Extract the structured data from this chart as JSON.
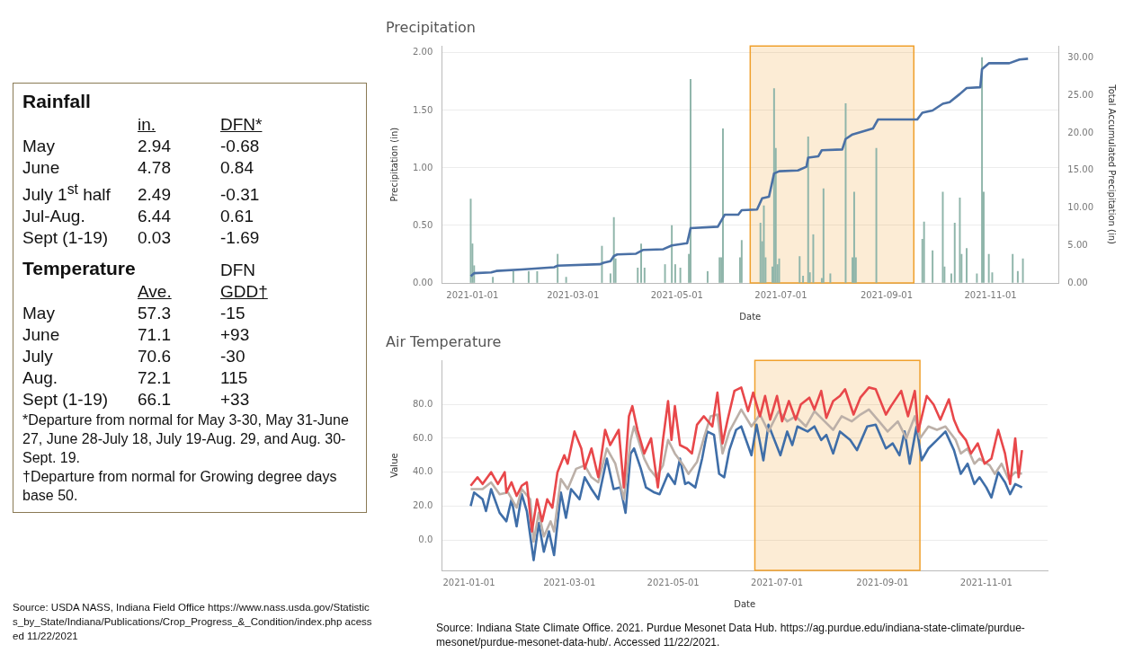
{
  "chart_data": [
    {
      "type": "other",
      "data_labels": true,
      "title": "Rainfall",
      "categories": [
        "May",
        "June",
        "July 1$^{st}$ half",
        "Jul-Aug.",
        "Sept (1-19)"
      ],
      "series": [
        {
          "name": "in.",
          "values": [
            2.94,
            4.78,
            2.49,
            6.44,
            0.03
          ]
        },
        {
          "name": "DFN*",
          "values": [
            -0.68,
            0.84,
            -0.31,
            0.61,
            -1.69
          ]
        }
      ]
    },
    {
      "type": "other",
      "data_labels": true,
      "title": "Temperature",
      "subtitle": "DFN",
      "categories": [
        "May",
        "June",
        "July",
        "Aug.",
        "Sept (1-19)"
      ],
      "series": [
        {
          "name": "Ave.",
          "values": [
            57.3,
            71.1,
            70.6,
            72.1,
            66.1
          ]
        },
        {
          "name": "GDD†",
          "values": [
            -15,
            93,
            -30,
            115,
            33
          ],
          "value_labels": [
            "-15",
            "+93",
            "-30",
            "115",
            "+33"
          ]
        }
      ],
      "annotations": [
        "*Departure from normal for May 3-30, May 31-June 27, June 28-July 18, July 19-Aug. 29, and Aug. 30-Sept. 19.",
        "†Departure from normal for Growing degree days base 50."
      ]
    },
    {
      "type": "other",
      "annotations": [
        "Source: USDA NASS, Indiana Field Office https://www.nass.usda.gov/Statistics_by_State/Indiana/Publications/Crop_Progress_&_Condition/index.php acessed 11/22/2021"
      ]
    },
    {
      "type": "bar",
      "title": "Precipitation",
      "xlabel": "Date",
      "ylabel": "Precipitation (in)",
      "y2label": "Total Accumulated Precipitation (in)",
      "grid": "y",
      "xlim": [
        "2020-12-14",
        "2021-12-11"
      ],
      "xticks": [
        "2021-01-01",
        "2021-03-01",
        "2021-05-01",
        "2021-07-01",
        "2021-09-01",
        "2021-11-01"
      ],
      "ylim": [
        0,
        2.06
      ],
      "yticks": [
        {
          "value": 0,
          "label": "0.00"
        },
        {
          "value": 0.5,
          "label": "0.50"
        },
        {
          "value": 1,
          "label": "1.00"
        },
        {
          "value": 1.5,
          "label": "1.50"
        },
        {
          "value": 2,
          "label": "2.00"
        }
      ],
      "y2lim": [
        0,
        31.6
      ],
      "y2ticks": [
        {
          "value": 0,
          "label": "0.00"
        },
        {
          "value": 5,
          "label": "5.00"
        },
        {
          "value": 10,
          "label": "10.00"
        },
        {
          "value": 15,
          "label": "15.00"
        },
        {
          "value": 20,
          "label": "20.00"
        },
        {
          "value": 25,
          "label": "25.00"
        },
        {
          "value": 30,
          "label": "30.00"
        }
      ],
      "bands": [
        {
          "axis": "x",
          "from": "2021-06-13",
          "to": "2021-09-17",
          "color": "#f0a02c"
        }
      ],
      "series": [
        {
          "type": "bar",
          "color": "#8fb5aa",
          "x": [
            "2020-12-31",
            "2021-01-01",
            "2021-01-02",
            "2021-01-13",
            "2021-01-25",
            "2021-02-03",
            "2021-02-08",
            "2021-02-20",
            "2021-02-25",
            "2021-03-18",
            "2021-03-23",
            "2021-03-25",
            "2021-03-26",
            "2021-04-08",
            "2021-04-10",
            "2021-04-12",
            "2021-04-24",
            "2021-04-28",
            "2021-04-30",
            "2021-05-03",
            "2021-05-08",
            "2021-05-09",
            "2021-05-19",
            "2021-05-26",
            "2021-05-27",
            "2021-05-28",
            "2021-06-07",
            "2021-06-08",
            "2021-06-19",
            "2021-06-20",
            "2021-06-21",
            "2021-06-22",
            "2021-06-26",
            "2021-06-27",
            "2021-06-28",
            "2021-06-29",
            "2021-06-30",
            "2021-07-12",
            "2021-07-14",
            "2021-07-17",
            "2021-07-18",
            "2021-07-20",
            "2021-07-25",
            "2021-07-26",
            "2021-07-30",
            "2021-08-08",
            "2021-08-12",
            "2021-08-13",
            "2021-08-14",
            "2021-08-26",
            "2021-09-22",
            "2021-09-23",
            "2021-09-28",
            "2021-10-04",
            "2021-10-05",
            "2021-10-09",
            "2021-10-11",
            "2021-10-14",
            "2021-10-15",
            "2021-10-18",
            "2021-10-24",
            "2021-10-27",
            "2021-10-28",
            "2021-10-31",
            "2021-11-02",
            "2021-11-14",
            "2021-11-17",
            "2021-11-20"
          ],
          "values": [
            0.73,
            0.34,
            0.15,
            0.05,
            0.1,
            0.1,
            0.1,
            0.25,
            0.05,
            0.32,
            0.08,
            0.57,
            0.21,
            0.13,
            0.34,
            0.13,
            0.16,
            0.5,
            0.16,
            0.13,
            0.25,
            1.77,
            0.1,
            0.22,
            0.22,
            1.34,
            0.22,
            0.37,
            0.52,
            0.36,
            0.67,
            0.22,
            0.14,
            1.69,
            1.17,
            0.16,
            0.21,
            0.23,
            0.06,
            1.27,
            0.09,
            0.42,
            0.04,
            0.82,
            0.08,
            1.56,
            0.22,
            0.79,
            0.22,
            1.17,
            0.38,
            0.53,
            0.28,
            0.79,
            0.14,
            0.08,
            0.52,
            0.74,
            0.25,
            0.3,
            0.08,
            1.96,
            0.79,
            0.25,
            0.09,
            0.25,
            0.1,
            0.21
          ]
        },
        {
          "type": "line",
          "axis": "y2",
          "color": "#4a70a5",
          "x": [
            "2020-12-31",
            "2021-01-02",
            "2021-01-12",
            "2021-01-15",
            "2021-01-30",
            "2021-02-18",
            "2021-02-20",
            "2021-03-17",
            "2021-03-19",
            "2021-03-23",
            "2021-03-25",
            "2021-03-27",
            "2021-04-07",
            "2021-04-11",
            "2021-04-23",
            "2021-04-28",
            "2021-05-07",
            "2021-05-09",
            "2021-05-25",
            "2021-05-29",
            "2021-06-06",
            "2021-06-08",
            "2021-06-17",
            "2021-06-20",
            "2021-06-24",
            "2021-06-27",
            "2021-06-30",
            "2021-07-11",
            "2021-07-16",
            "2021-07-17",
            "2021-07-23",
            "2021-07-25",
            "2021-08-06",
            "2021-08-08",
            "2021-08-12",
            "2021-08-24",
            "2021-08-27",
            "2021-09-19",
            "2021-09-22",
            "2021-09-28",
            "2021-10-04",
            "2021-10-08",
            "2021-10-14",
            "2021-10-18",
            "2021-10-26",
            "2021-10-27",
            "2021-10-31",
            "2021-11-12",
            "2021-11-18",
            "2021-11-23"
          ],
          "values": [
            0.9,
            1.3,
            1.4,
            1.6,
            1.8,
            2.1,
            2.3,
            2.5,
            2.7,
            2.9,
            3.6,
            3.8,
            3.9,
            4.4,
            4.5,
            5.0,
            5.3,
            7.3,
            7.5,
            9.1,
            9.1,
            9.7,
            9.8,
            11.3,
            11.5,
            14.6,
            14.9,
            15.0,
            15.5,
            16.7,
            16.9,
            17.7,
            17.8,
            19.2,
            19.8,
            20.6,
            21.8,
            21.8,
            22.7,
            23.0,
            23.9,
            24.1,
            25.2,
            26.0,
            26.1,
            28.5,
            29.3,
            29.3,
            29.8,
            29.9
          ]
        }
      ]
    },
    {
      "type": "line",
      "title": "Air Temperature",
      "xlabel": "Date",
      "ylabel": "Value",
      "grid": "y",
      "xlim": [
        "2020-12-16",
        "2021-12-07"
      ],
      "xticks": [
        "2021-01-01",
        "2021-03-01",
        "2021-05-01",
        "2021-07-01",
        "2021-09-01",
        "2021-11-01"
      ],
      "ylim": [
        -18,
        106
      ],
      "yticks": [
        {
          "value": 0,
          "label": "0.0"
        },
        {
          "value": 20,
          "label": "20.0"
        },
        {
          "value": 40,
          "label": "40.0"
        },
        {
          "value": 60,
          "label": "60.0"
        },
        {
          "value": 80,
          "label": "80.0"
        }
      ],
      "bands": [
        {
          "axis": "x",
          "from": "2021-06-18",
          "to": "2021-09-23",
          "color": "#f0a02c"
        }
      ],
      "annotations": [
        "Source: Indiana State Climate Office. 2021. Purdue Mesonet Data Hub. https://ag.purdue.edu/indiana-state-climate/purdue-mesonet/purdue-mesonet-data-hub/. Accessed 11/22/2021."
      ],
      "series": [
        {
          "color": "#e8474a",
          "x": [
            "2021-01-02",
            "2021-01-06",
            "2021-01-09",
            "2021-01-14",
            "2021-01-18",
            "2021-01-22",
            "2021-01-23",
            "2021-01-26",
            "2021-01-29",
            "2021-02-01",
            "2021-02-04",
            "2021-02-07",
            "2021-02-10",
            "2021-02-13",
            "2021-02-16",
            "2021-02-19",
            "2021-02-22",
            "2021-02-26",
            "2021-02-28",
            "2021-03-04",
            "2021-03-08",
            "2021-03-10",
            "2021-03-14",
            "2021-03-18",
            "2021-03-22",
            "2021-03-25",
            "2021-03-30",
            "2021-04-02",
            "2021-04-05",
            "2021-04-07",
            "2021-04-10",
            "2021-04-14",
            "2021-04-18",
            "2021-04-22",
            "2021-04-25",
            "2021-04-28",
            "2021-04-30",
            "2021-05-02",
            "2021-05-05",
            "2021-05-09",
            "2021-05-12",
            "2021-05-15",
            "2021-05-19",
            "2021-05-24",
            "2021-05-27",
            "2021-05-30",
            "2021-06-02",
            "2021-06-06",
            "2021-06-10",
            "2021-06-14",
            "2021-06-17",
            "2021-06-21",
            "2021-06-24",
            "2021-06-27",
            "2021-07-01",
            "2021-07-04",
            "2021-07-08",
            "2021-07-12",
            "2021-07-15",
            "2021-07-20",
            "2021-07-23",
            "2021-07-27",
            "2021-07-30",
            "2021-08-03",
            "2021-08-07",
            "2021-08-10",
            "2021-08-15",
            "2021-08-19",
            "2021-08-24",
            "2021-08-28",
            "2021-09-03",
            "2021-09-06",
            "2021-09-12",
            "2021-09-16",
            "2021-09-20",
            "2021-09-22",
            "2021-09-27",
            "2021-10-01",
            "2021-10-05",
            "2021-10-10",
            "2021-10-13",
            "2021-10-16",
            "2021-10-20",
            "2021-10-23",
            "2021-10-27",
            "2021-10-31",
            "2021-11-04",
            "2021-11-08",
            "2021-11-12",
            "2021-11-15",
            "2021-11-18",
            "2021-11-20",
            "2021-11-22"
          ],
          "values": [
            32,
            37,
            33,
            40,
            33,
            40,
            28,
            34,
            26,
            32,
            34,
            5,
            24,
            11,
            24,
            19,
            40,
            50,
            45,
            64,
            54,
            42,
            54,
            37,
            65,
            56,
            65,
            31,
            73,
            79,
            65,
            51,
            60,
            31,
            59,
            82,
            59,
            79,
            56,
            54,
            51,
            68,
            73,
            67,
            87,
            57,
            71,
            88,
            90,
            76,
            87,
            73,
            85,
            71,
            85,
            70,
            82,
            71,
            80,
            84,
            77,
            88,
            72,
            82,
            85,
            89,
            74,
            84,
            90,
            89,
            74,
            79,
            88,
            73,
            88,
            64,
            85,
            80,
            71,
            83,
            71,
            64,
            59,
            51,
            57,
            45,
            48,
            65,
            51,
            33,
            60,
            37,
            53
          ]
        },
        {
          "color": "#bcb0a8",
          "x": [
            "2021-01-02",
            "2021-01-09",
            "2021-01-14",
            "2021-01-19",
            "2021-01-24",
            "2021-01-29",
            "2021-02-01",
            "2021-02-06",
            "2021-02-08",
            "2021-02-11",
            "2021-02-14",
            "2021-02-18",
            "2021-02-20",
            "2021-02-24",
            "2021-02-28",
            "2021-03-05",
            "2021-03-10",
            "2021-03-14",
            "2021-03-18",
            "2021-03-23",
            "2021-03-28",
            "2021-04-02",
            "2021-04-06",
            "2021-04-08",
            "2021-04-14",
            "2021-04-17",
            "2021-04-21",
            "2021-04-25",
            "2021-04-28",
            "2021-05-02",
            "2021-05-07",
            "2021-05-10",
            "2021-05-15",
            "2021-05-19",
            "2021-05-23",
            "2021-05-27",
            "2021-05-30",
            "2021-06-03",
            "2021-06-10",
            "2021-06-16",
            "2021-06-21",
            "2021-06-26",
            "2021-07-02",
            "2021-07-07",
            "2021-07-12",
            "2021-07-18",
            "2021-07-23",
            "2021-07-29",
            "2021-08-03",
            "2021-08-08",
            "2021-08-14",
            "2021-08-19",
            "2021-08-24",
            "2021-08-30",
            "2021-09-04",
            "2021-09-10",
            "2021-09-15",
            "2021-09-20",
            "2021-09-23",
            "2021-09-28",
            "2021-10-03",
            "2021-10-08",
            "2021-10-14",
            "2021-10-17",
            "2021-10-21",
            "2021-10-25",
            "2021-10-28",
            "2021-11-03",
            "2021-11-06",
            "2021-11-10",
            "2021-11-14",
            "2021-11-18",
            "2021-11-22"
          ],
          "values": [
            30,
            30,
            34,
            27,
            28,
            19,
            30,
            24,
            -1,
            16,
            2,
            11,
            5,
            36,
            30,
            42,
            44,
            37,
            34,
            54,
            45,
            24,
            59,
            67,
            48,
            42,
            37,
            44,
            59,
            51,
            44,
            39,
            46,
            60,
            73,
            74,
            51,
            64,
            77,
            67,
            74,
            64,
            76,
            70,
            73,
            67,
            76,
            70,
            65,
            73,
            70,
            74,
            77,
            70,
            64,
            70,
            60,
            73,
            60,
            67,
            65,
            67,
            59,
            51,
            54,
            45,
            48,
            44,
            39,
            45,
            36,
            40,
            39
          ]
        },
        {
          "color": "#3f6ea8",
          "x": [
            "2021-01-02",
            "2021-01-04",
            "2021-01-09",
            "2021-01-11",
            "2021-01-14",
            "2021-01-19",
            "2021-01-23",
            "2021-01-26",
            "2021-01-29",
            "2021-02-01",
            "2021-02-04",
            "2021-02-08",
            "2021-02-11",
            "2021-02-14",
            "2021-02-17",
            "2021-02-20",
            "2021-02-24",
            "2021-02-27",
            "2021-03-02",
            "2021-03-07",
            "2021-03-10",
            "2021-03-14",
            "2021-03-18",
            "2021-03-23",
            "2021-03-27",
            "2021-03-31",
            "2021-04-03",
            "2021-04-06",
            "2021-04-08",
            "2021-04-12",
            "2021-04-15",
            "2021-04-20",
            "2021-04-23",
            "2021-04-28",
            "2021-05-02",
            "2021-05-05",
            "2021-05-08",
            "2021-05-10",
            "2021-05-14",
            "2021-05-18",
            "2021-05-21",
            "2021-05-25",
            "2021-05-28",
            "2021-05-31",
            "2021-06-03",
            "2021-06-07",
            "2021-06-10",
            "2021-06-16",
            "2021-06-19",
            "2021-06-23",
            "2021-06-26",
            "2021-07-03",
            "2021-07-07",
            "2021-07-10",
            "2021-07-13",
            "2021-07-19",
            "2021-07-23",
            "2021-07-27",
            "2021-07-30",
            "2021-08-03",
            "2021-08-07",
            "2021-08-13",
            "2021-08-17",
            "2021-08-23",
            "2021-08-28",
            "2021-09-03",
            "2021-09-07",
            "2021-09-11",
            "2021-09-14",
            "2021-09-17",
            "2021-09-21",
            "2021-09-24",
            "2021-09-28",
            "2021-10-03",
            "2021-10-08",
            "2021-10-13",
            "2021-10-17",
            "2021-10-21",
            "2021-10-25",
            "2021-10-28",
            "2021-11-01",
            "2021-11-04",
            "2021-11-08",
            "2021-11-12",
            "2021-11-15",
            "2021-11-18",
            "2021-11-22"
          ],
          "values": [
            20,
            28,
            24,
            17,
            30,
            16,
            11,
            24,
            8,
            27,
            17,
            -12,
            10,
            -7,
            5,
            -9,
            28,
            13,
            30,
            24,
            37,
            30,
            24,
            48,
            30,
            31,
            16,
            51,
            54,
            42,
            31,
            28,
            27,
            39,
            33,
            48,
            33,
            34,
            31,
            48,
            64,
            62,
            39,
            37,
            53,
            65,
            67,
            50,
            68,
            47,
            68,
            50,
            64,
            56,
            67,
            64,
            67,
            59,
            62,
            51,
            64,
            59,
            53,
            67,
            68,
            54,
            57,
            50,
            64,
            45,
            67,
            47,
            54,
            59,
            64,
            53,
            39,
            45,
            33,
            37,
            31,
            25,
            40,
            34,
            27,
            33,
            31
          ]
        }
      ]
    }
  ]
}
